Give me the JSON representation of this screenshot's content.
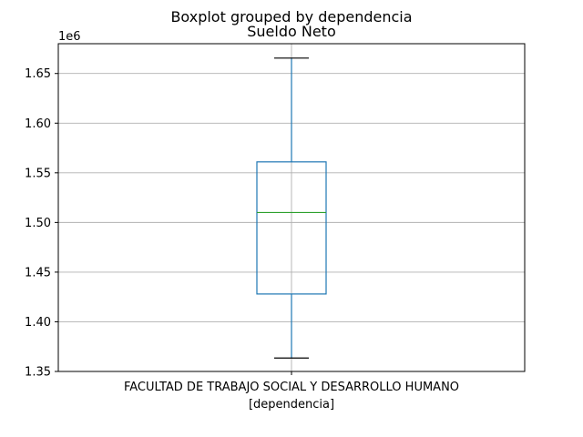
{
  "chart_data": {
    "type": "box",
    "suptitle": "Boxplot grouped by dependencia",
    "title": "Sueldo Neto",
    "xlabel": "[dependencia]",
    "ylabel": "",
    "offset_label": "1e6",
    "categories": [
      "FACULTAD DE TRABAJO SOCIAL Y DESARROLLO HUMANO"
    ],
    "boxes": [
      {
        "category": "FACULTAD DE TRABAJO SOCIAL Y DESARROLLO HUMANO",
        "whisker_low": 1.3635,
        "q1": 1.428,
        "median": 1.51,
        "q3": 1.561,
        "whisker_high": 1.6655
      }
    ],
    "ylim": [
      1.35,
      1.68
    ],
    "yticks": [
      1.35,
      1.4,
      1.45,
      1.5,
      1.55,
      1.6,
      1.65
    ],
    "ytick_labels": [
      "1.35",
      "1.40",
      "1.45",
      "1.50",
      "1.55",
      "1.60",
      "1.65"
    ],
    "grid": true,
    "colors": {
      "box": "#1f77b4",
      "median": "#2ca02c",
      "whisker": "#1f77b4",
      "cap": "#000000",
      "grid": "#b0b0b0"
    }
  }
}
